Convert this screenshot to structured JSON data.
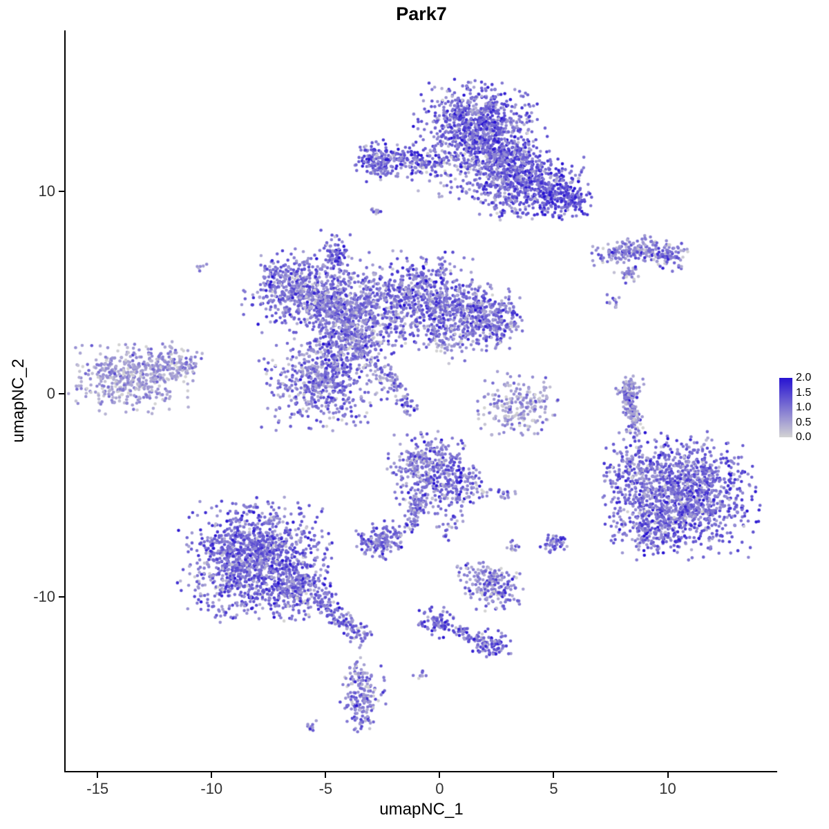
{
  "chart_data": {
    "type": "scatter",
    "title": "Park7",
    "xlabel": "umapNC_1",
    "ylabel": "umapNC_2",
    "xlim": [
      -16.4,
      14.8
    ],
    "ylim": [
      -18.6,
      17.95
    ],
    "x_ticks": [
      -15,
      -10,
      -5,
      0,
      5,
      10
    ],
    "y_ticks": [
      10,
      0,
      -10
    ],
    "grid": false,
    "point_radius": 2.3,
    "seed": 42,
    "legend": {
      "ticks": [
        "2.0",
        "1.5",
        "1.0",
        "0.5",
        "0.0"
      ],
      "domain": [
        0,
        2
      ],
      "color_low": "#d3d3d3",
      "color_high": "#2713d2",
      "position": "right"
    },
    "clusters": [
      {
        "type": "blob",
        "name": "top-left-arm",
        "cx": -1.6,
        "cy": 11.5,
        "sx": 0.9,
        "sy": 0.42,
        "n": 200,
        "v": 1.1
      },
      {
        "type": "blob",
        "name": "top-left-tip",
        "cx": -2.9,
        "cy": 11.5,
        "sx": 0.35,
        "sy": 0.5,
        "n": 90,
        "v": 1.15
      },
      {
        "type": "blob",
        "name": "top-main",
        "cx": 1.6,
        "cy": 13.4,
        "sx": 1.15,
        "sy": 0.9,
        "n": 680,
        "v": 1.15
      },
      {
        "type": "blob",
        "name": "top-main-lower",
        "cx": 2.4,
        "cy": 12.1,
        "sx": 1.0,
        "sy": 0.65,
        "n": 320,
        "v": 1.1
      },
      {
        "type": "blob",
        "name": "top-right-shoulder",
        "cx": 3.2,
        "cy": 11.1,
        "sx": 0.85,
        "sy": 0.6,
        "n": 260,
        "v": 1.2
      },
      {
        "type": "blob",
        "name": "top-right-arm",
        "cx": 4.5,
        "cy": 10.2,
        "sx": 0.85,
        "sy": 0.65,
        "n": 300,
        "v": 1.25
      },
      {
        "type": "blob",
        "name": "top-right-tip",
        "cx": 5.5,
        "cy": 9.6,
        "sx": 0.5,
        "sy": 0.45,
        "n": 140,
        "v": 1.3
      },
      {
        "type": "blob",
        "name": "top-sparse-gap",
        "cx": 0.6,
        "cy": 11.2,
        "sx": 0.9,
        "sy": 0.7,
        "n": 90,
        "v": 0.8,
        "vsd": 0.4
      },
      {
        "type": "blob",
        "name": "top-under",
        "cx": 2.3,
        "cy": 10.2,
        "sx": 0.7,
        "sy": 0.5,
        "n": 90,
        "v": 0.95
      },
      {
        "type": "blob",
        "name": "top-under2",
        "cx": 2.9,
        "cy": 9.4,
        "sx": 0.5,
        "sy": 0.4,
        "n": 55,
        "v": 1.0
      },
      {
        "type": "blob",
        "name": "dot-above-mid",
        "cx": -2.75,
        "cy": 9.0,
        "sx": 0.13,
        "sy": 0.13,
        "n": 10,
        "v": 1.0
      },
      {
        "type": "blob",
        "name": "mid-left-lobe",
        "cx": -6.4,
        "cy": 5.3,
        "sx": 0.95,
        "sy": 0.8,
        "n": 420,
        "v": 1.0
      },
      {
        "type": "blob",
        "name": "mid-left-bridge",
        "cx": -5.0,
        "cy": 4.5,
        "sx": 0.8,
        "sy": 0.6,
        "n": 220,
        "v": 0.95
      },
      {
        "type": "blob",
        "name": "mid-top-spike",
        "cx": -4.5,
        "cy": 6.8,
        "sx": 0.3,
        "sy": 0.55,
        "n": 90,
        "v": 1.1
      },
      {
        "type": "blob",
        "name": "mid-center",
        "cx": -3.6,
        "cy": 3.8,
        "sx": 0.95,
        "sy": 0.95,
        "n": 420,
        "v": 0.95
      },
      {
        "type": "blob",
        "name": "mid-right-lobe",
        "cx": -1.0,
        "cy": 4.7,
        "sx": 1.15,
        "sy": 1.0,
        "n": 620,
        "v": 1.0
      },
      {
        "type": "blob",
        "name": "mid-right-ext",
        "cx": 1.3,
        "cy": 3.9,
        "sx": 1.0,
        "sy": 0.75,
        "n": 380,
        "v": 1.0
      },
      {
        "type": "blob",
        "name": "mid-right-tip",
        "cx": 2.5,
        "cy": 3.4,
        "sx": 0.5,
        "sy": 0.6,
        "n": 120,
        "v": 1.05
      },
      {
        "type": "blob",
        "name": "mid-lower-lobe",
        "cx": -5.2,
        "cy": 0.7,
        "sx": 1.15,
        "sy": 1.05,
        "n": 560,
        "v": 0.95
      },
      {
        "type": "blob",
        "name": "mid-lower-bridge",
        "cx": -4.4,
        "cy": 2.4,
        "sx": 0.6,
        "sy": 0.7,
        "n": 130,
        "v": 0.9
      },
      {
        "type": "line",
        "name": "mid-diag-strand",
        "x1": -3.8,
        "y1": 2.8,
        "x2": -1.2,
        "y2": -0.8,
        "j": 0.25,
        "n": 160,
        "v": 0.9
      },
      {
        "type": "blob",
        "name": "mid-below-right",
        "cx": 0.2,
        "cy": 2.7,
        "sx": 0.5,
        "sy": 0.5,
        "n": 60,
        "v": 0.85
      },
      {
        "type": "blob",
        "name": "far-left",
        "cx": -13.4,
        "cy": 0.9,
        "sx": 1.2,
        "sy": 0.8,
        "n": 480,
        "v": 0.55,
        "vsd": 0.33
      },
      {
        "type": "blob",
        "name": "far-left-arm",
        "cx": -11.6,
        "cy": 1.5,
        "sx": 0.55,
        "sy": 0.35,
        "n": 75,
        "v": 0.6,
        "vsd": 0.33
      },
      {
        "type": "blob",
        "name": "left-lone-dot",
        "cx": -10.5,
        "cy": 6.3,
        "sx": 0.12,
        "sy": 0.1,
        "n": 6,
        "v": 0.7,
        "vsd": 0.2
      },
      {
        "type": "line",
        "name": "right-upper-strand",
        "x1": 7.0,
        "y1": 6.9,
        "x2": 9.3,
        "y2": 7.2,
        "j": 0.27,
        "n": 150,
        "v": 0.95
      },
      {
        "type": "blob",
        "name": "right-upper-blob",
        "cx": 9.9,
        "cy": 6.9,
        "sx": 0.45,
        "sy": 0.35,
        "n": 90,
        "v": 1.0
      },
      {
        "type": "blob",
        "name": "right-upper-frag",
        "cx": 8.3,
        "cy": 5.9,
        "sx": 0.3,
        "sy": 0.25,
        "n": 30,
        "v": 0.8
      },
      {
        "type": "blob",
        "name": "right-upper-dot",
        "cx": 7.6,
        "cy": 4.6,
        "sx": 0.18,
        "sy": 0.15,
        "n": 12,
        "v": 0.75
      },
      {
        "type": "line",
        "name": "right-mid-arc",
        "x1": 8.2,
        "y1": 0.3,
        "x2": 8.6,
        "y2": -1.9,
        "j": 0.17,
        "n": 130,
        "v": 0.8
      },
      {
        "type": "blob",
        "name": "right-mid-top",
        "cx": 8.35,
        "cy": 0.4,
        "sx": 0.3,
        "sy": 0.3,
        "n": 45,
        "v": 0.6,
        "vsd": 0.3
      },
      {
        "type": "blob",
        "name": "center-sparse",
        "cx": 3.4,
        "cy": -0.5,
        "sx": 0.75,
        "sy": 0.75,
        "n": 210,
        "v": 0.6,
        "vsd": 0.35
      },
      {
        "type": "blob",
        "name": "bottom-right-main",
        "cx": 10.6,
        "cy": -5.0,
        "sx": 1.45,
        "sy": 1.35,
        "n": 1300,
        "v": 1.1
      },
      {
        "type": "blob",
        "name": "bottom-right-bulge",
        "cx": 9.2,
        "cy": -6.6,
        "sx": 0.7,
        "sy": 0.55,
        "n": 150,
        "v": 1.05
      },
      {
        "type": "blob",
        "name": "bottom-right-edge",
        "cx": 8.4,
        "cy": -3.7,
        "sx": 0.5,
        "sy": 0.7,
        "n": 80,
        "v": 0.9
      },
      {
        "type": "blob",
        "name": "bottom-left-main",
        "cx": -8.1,
        "cy": -8.2,
        "sx": 1.45,
        "sy": 1.3,
        "n": 1300,
        "v": 1.1
      },
      {
        "type": "blob",
        "name": "bottom-left-ext",
        "cx": -6.1,
        "cy": -9.7,
        "sx": 0.8,
        "sy": 0.6,
        "n": 200,
        "v": 1.0
      },
      {
        "type": "line",
        "name": "bottom-left-tail",
        "x1": -5.3,
        "y1": -10.1,
        "x2": -3.9,
        "y2": -11.5,
        "j": 0.2,
        "n": 80,
        "v": 0.95
      },
      {
        "type": "blob",
        "name": "bottom-left-tail-blob",
        "cx": -3.6,
        "cy": -11.9,
        "sx": 0.3,
        "sy": 0.28,
        "n": 40,
        "v": 1.0
      },
      {
        "type": "blob",
        "name": "bottom-left-tail-dot",
        "cx": -4.35,
        "cy": -11.3,
        "sx": 0.15,
        "sy": 0.14,
        "n": 12,
        "v": 0.95
      },
      {
        "type": "blob",
        "name": "center-bottom-main",
        "cx": -0.4,
        "cy": -3.8,
        "sx": 0.82,
        "sy": 0.88,
        "n": 380,
        "v": 1.0
      },
      {
        "type": "blob",
        "name": "center-bottom-right",
        "cx": 0.9,
        "cy": -4.6,
        "sx": 0.6,
        "sy": 0.5,
        "n": 120,
        "v": 0.95
      },
      {
        "type": "line",
        "name": "center-bottom-tail",
        "x1": -0.9,
        "y1": -5.1,
        "x2": -1.3,
        "y2": -6.7,
        "j": 0.2,
        "n": 70,
        "v": 0.95
      },
      {
        "type": "blob",
        "name": "center-bottom-knot",
        "cx": -2.6,
        "cy": -7.25,
        "sx": 0.5,
        "sy": 0.42,
        "n": 150,
        "v": 1.1
      },
      {
        "type": "blob",
        "name": "center-bottom-dots",
        "cx": 0.4,
        "cy": -6.6,
        "sx": 0.3,
        "sy": 0.3,
        "n": 25,
        "v": 0.9
      },
      {
        "type": "blob",
        "name": "pair-dots",
        "cx": 3.0,
        "cy": -4.9,
        "sx": 0.28,
        "sy": 0.16,
        "n": 14,
        "v": 0.9
      },
      {
        "type": "blob",
        "name": "small-lower",
        "cx": 2.4,
        "cy": -9.6,
        "sx": 0.58,
        "sy": 0.5,
        "n": 175,
        "v": 0.95
      },
      {
        "type": "blob",
        "name": "small-lower-halo",
        "cx": 1.8,
        "cy": -8.8,
        "sx": 0.45,
        "sy": 0.3,
        "n": 40,
        "v": 0.7,
        "vsd": 0.3
      },
      {
        "type": "blob",
        "name": "dot-mid-low",
        "cx": 3.2,
        "cy": -7.5,
        "sx": 0.2,
        "sy": 0.15,
        "n": 12,
        "v": 0.8
      },
      {
        "type": "blob",
        "name": "dot-right-low",
        "cx": 5.0,
        "cy": -7.4,
        "sx": 0.3,
        "sy": 0.26,
        "n": 45,
        "v": 1.1
      },
      {
        "type": "blob",
        "name": "strand-left-blob",
        "cx": -0.2,
        "cy": -11.2,
        "sx": 0.36,
        "sy": 0.36,
        "n": 60,
        "v": 1.1
      },
      {
        "type": "line",
        "name": "strand-diag",
        "x1": -0.1,
        "y1": -11.3,
        "x2": 2.1,
        "y2": -12.3,
        "j": 0.16,
        "n": 70,
        "v": 1.1
      },
      {
        "type": "blob",
        "name": "strand-right-blob",
        "cx": 2.3,
        "cy": -12.4,
        "sx": 0.38,
        "sy": 0.35,
        "n": 75,
        "v": 1.2
      },
      {
        "type": "blob",
        "name": "lone-dot-low",
        "cx": -0.9,
        "cy": -13.8,
        "sx": 0.15,
        "sy": 0.12,
        "n": 8,
        "v": 0.9
      },
      {
        "type": "blob",
        "name": "bottom-column",
        "cx": -3.35,
        "cy": -15.0,
        "sx": 0.44,
        "sy": 0.72,
        "n": 160,
        "v": 0.95
      },
      {
        "type": "blob",
        "name": "bottom-column-top",
        "cx": -3.6,
        "cy": -13.8,
        "sx": 0.25,
        "sy": 0.35,
        "n": 25,
        "v": 0.8
      },
      {
        "type": "blob",
        "name": "bottom-lone-dot",
        "cx": -5.6,
        "cy": -16.4,
        "sx": 0.18,
        "sy": 0.12,
        "n": 10,
        "v": 0.85
      }
    ]
  }
}
